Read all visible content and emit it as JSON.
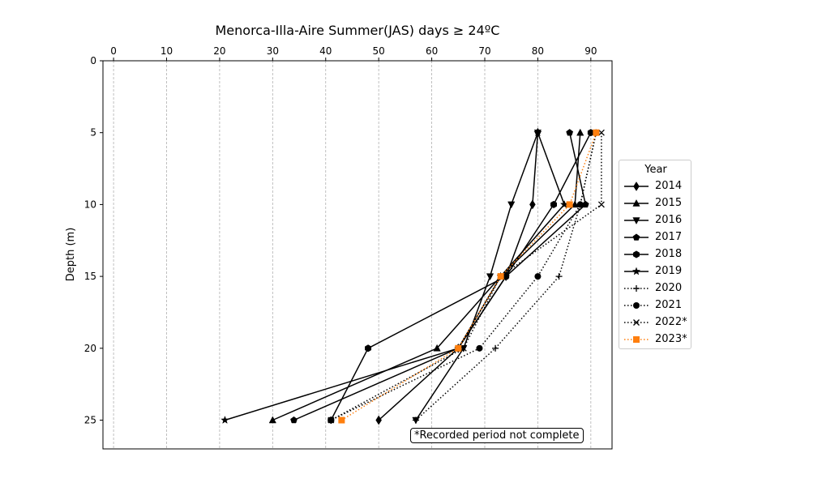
{
  "chart_data": {
    "type": "line",
    "title": "Menorca-Illa-Aire Summer(JAS) days ≥ 24ºC",
    "xlabel": "",
    "ylabel": "Depth (m)",
    "xlim": [
      -2,
      94
    ],
    "ylim": [
      27,
      0
    ],
    "x_ticks": [
      0,
      10,
      20,
      30,
      40,
      50,
      60,
      70,
      80,
      90
    ],
    "y_ticks": [
      0,
      5,
      10,
      15,
      20,
      25
    ],
    "x_axis_position": "top",
    "y_inverted": true,
    "grid": "vertical dashed",
    "legend_title": "Year",
    "legend_position": "right",
    "annotation": "*Recorded period not complete",
    "depths": [
      5,
      10,
      15,
      20,
      25
    ],
    "series": [
      {
        "name": "2014",
        "marker": "diamond",
        "style": "solid",
        "color": "#000000",
        "points": [
          [
            80,
            5
          ],
          [
            79,
            10
          ],
          [
            74,
            15
          ],
          [
            65,
            20
          ],
          [
            50,
            25
          ]
        ]
      },
      {
        "name": "2015",
        "marker": "triangle-up",
        "style": "solid",
        "color": "#000000",
        "points": [
          [
            88,
            5
          ],
          [
            87,
            10
          ],
          [
            73,
            15
          ],
          [
            61,
            20
          ],
          [
            30,
            25
          ]
        ]
      },
      {
        "name": "2016",
        "marker": "triangle-down",
        "style": "solid",
        "color": "#000000",
        "points": [
          [
            80,
            5
          ],
          [
            75,
            10
          ],
          [
            71,
            15
          ],
          [
            66,
            20
          ],
          [
            57,
            25
          ]
        ]
      },
      {
        "name": "2017",
        "marker": "pentagon",
        "style": "solid",
        "color": "#000000",
        "points": [
          [
            86,
            5
          ],
          [
            89,
            10
          ],
          [
            74,
            15
          ],
          [
            65,
            20
          ],
          [
            34,
            25
          ]
        ]
      },
      {
        "name": "2018",
        "marker": "hexagon",
        "style": "solid",
        "color": "#000000",
        "points": [
          [
            90,
            5
          ],
          [
            83,
            10
          ],
          [
            74,
            15
          ],
          [
            48,
            20
          ],
          [
            41,
            25
          ]
        ]
      },
      {
        "name": "2019",
        "marker": "star",
        "style": "solid",
        "color": "#000000",
        "points": [
          [
            80,
            5
          ],
          [
            85,
            10
          ],
          [
            73,
            15
          ],
          [
            65,
            20
          ],
          [
            21,
            25
          ]
        ]
      },
      {
        "name": "2020",
        "marker": "plus",
        "style": "dotted",
        "color": "#000000",
        "points": [
          [
            91,
            5
          ],
          [
            88,
            10
          ],
          [
            84,
            15
          ],
          [
            72,
            20
          ],
          [
            57,
            25
          ]
        ]
      },
      {
        "name": "2021",
        "marker": "circle",
        "style": "dotted",
        "color": "#000000",
        "points": [
          [
            91,
            5
          ],
          [
            88,
            10
          ],
          [
            80,
            15
          ],
          [
            69,
            20
          ],
          [
            41,
            25
          ]
        ]
      },
      {
        "name": "2022*",
        "marker": "x",
        "style": "dotted",
        "color": "#000000",
        "points": [
          [
            92,
            5
          ],
          [
            92,
            10
          ],
          [
            73,
            15
          ],
          [
            66,
            20
          ],
          [
            41,
            25
          ]
        ]
      },
      {
        "name": "2023*",
        "marker": "square",
        "style": "dotted",
        "color": "#ff7f0e",
        "points": [
          [
            91,
            5
          ],
          [
            86,
            10
          ],
          [
            73,
            15
          ],
          [
            65,
            20
          ],
          [
            43,
            25
          ]
        ]
      }
    ]
  }
}
